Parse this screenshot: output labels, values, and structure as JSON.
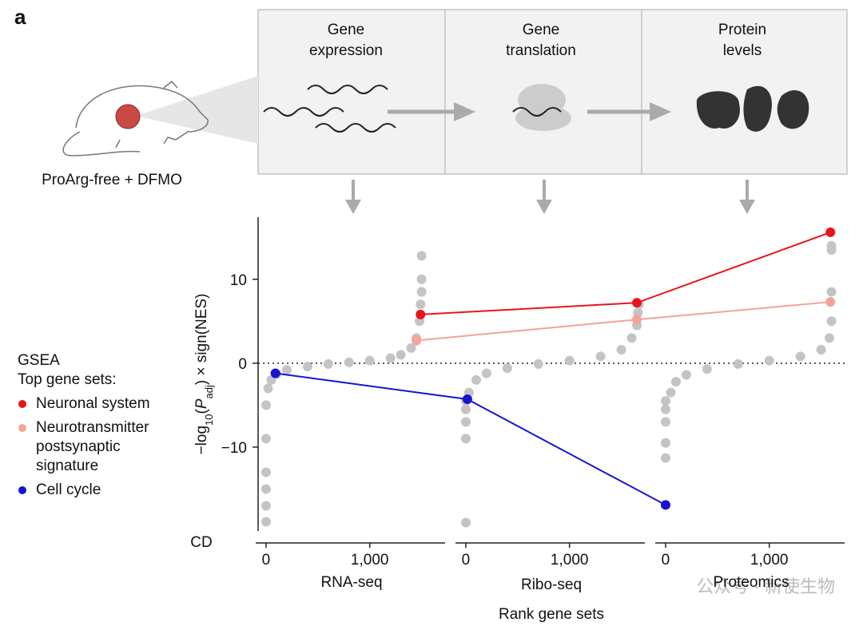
{
  "figure": {
    "panel_label": "a",
    "caption": "ProArg-free + DFMO",
    "stages": [
      [
        "Gene",
        "expression"
      ],
      [
        "Gene",
        "translation"
      ],
      [
        "Protein",
        "levels"
      ]
    ],
    "watermark": "公众号 · 新使生物"
  },
  "chart_data": {
    "type": "scatter",
    "y_label": [
      "−log",
      "10",
      "(",
      "P",
      "adj",
      ") × sign(NES)"
    ],
    "ylim": [
      -20,
      17.4
    ],
    "yticks": [
      {
        "value": -10,
        "label": "−10"
      },
      0,
      10
    ],
    "reference_line": 0,
    "xlim": [
      -100,
      1750
    ],
    "xticks": [
      0,
      {
        "value": 1000,
        "label": "1,000"
      }
    ],
    "point_color": "#c4c4c4",
    "panels": [
      {
        "name": "RNA-seq",
        "x": [
          0,
          0,
          0,
          0,
          0,
          0,
          20,
          50,
          100,
          200,
          400,
          600,
          800,
          1000,
          1200,
          1300,
          1400,
          1450,
          1480,
          1490,
          1500,
          1500,
          1500
        ],
        "values": [
          -18.9,
          -17,
          -15,
          -13,
          -9,
          -5,
          -3,
          -2,
          -1.3,
          -0.8,
          -0.4,
          -0.1,
          0.1,
          0.3,
          0.6,
          1,
          1.8,
          3,
          5,
          7,
          8.5,
          10,
          12.8
        ]
      },
      {
        "name": "Ribo-seq",
        "x": [
          0,
          0,
          0,
          0,
          0,
          30,
          100,
          200,
          400,
          700,
          1000,
          1300,
          1500,
          1600,
          1650,
          1660,
          1670
        ],
        "values": [
          -19,
          -9,
          -7,
          -5.5,
          -4.5,
          -3.5,
          -2,
          -1.2,
          -0.6,
          -0.1,
          0.3,
          0.8,
          1.6,
          3,
          4.5,
          6,
          7
        ]
      },
      {
        "name": "Proteomics",
        "x": [
          0,
          0,
          0,
          0,
          0,
          50,
          100,
          200,
          400,
          700,
          1000,
          1300,
          1500,
          1580,
          1600,
          1600,
          1600,
          1600
        ],
        "values": [
          -11.3,
          -9.5,
          -7,
          -5.5,
          -4.5,
          -3.5,
          -2.2,
          -1.4,
          -0.7,
          -0.1,
          0.3,
          0.8,
          1.6,
          3,
          5,
          8.5,
          13.5,
          14
        ]
      }
    ],
    "series": [
      {
        "name": "Neuronal system",
        "color": "#e8141c",
        "x": [
          1490,
          1650,
          1590
        ],
        "values": [
          5.8,
          7.2,
          15.6
        ]
      },
      {
        "name": "Neurotransmitter postsynaptic signature",
        "color": "#f4a39a",
        "x": [
          1450,
          1650,
          1590
        ],
        "values": [
          2.7,
          5.2,
          7.3
        ]
      },
      {
        "name": "Cell cycle",
        "color": "#1414d2",
        "x": [
          90,
          15,
          0
        ],
        "values": [
          -1.2,
          -4.3,
          -16.9
        ]
      }
    ],
    "legend_title": [
      "GSEA",
      "Top gene sets:"
    ],
    "annotation": "CD",
    "x_label": "Rank gene sets"
  }
}
